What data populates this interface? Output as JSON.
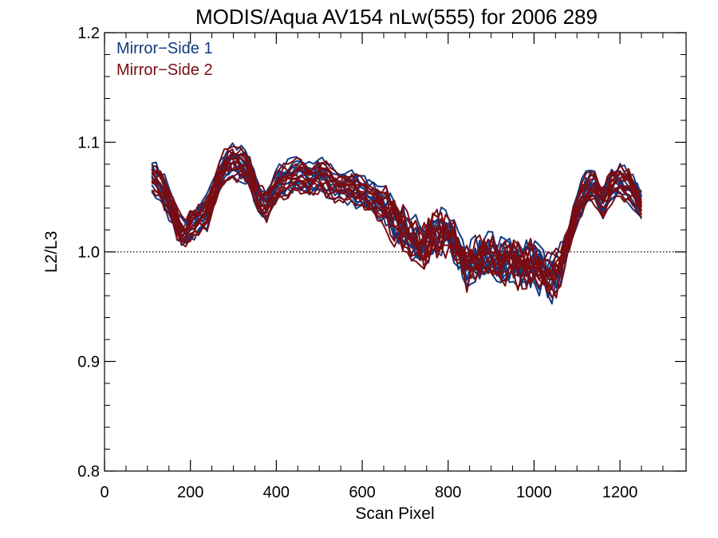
{
  "chart_data": {
    "type": "line",
    "title": "MODIS/Aqua AV154 nLw(555) for 2006 289",
    "xlabel": "Scan Pixel",
    "ylabel": "L2/L3",
    "xlim": [
      0,
      1354
    ],
    "ylim": [
      0.8,
      1.2
    ],
    "x_ticks": [
      "0",
      "200",
      "400",
      "600",
      "800",
      "1000",
      "1200"
    ],
    "y_ticks": [
      "0.8",
      "0.9",
      "1.0",
      "1.1",
      "1.2"
    ],
    "reference_line": 1.0,
    "grid": false,
    "legend_position": "top-left",
    "legend": [
      "Mirror−Side 1",
      "Mirror−Side 2"
    ],
    "colors": {
      "ms1": "#123a80",
      "ms2": "#7a0c12",
      "axis": "#000000"
    },
    "x": [
      110,
      130,
      150,
      170,
      185,
      200,
      220,
      240,
      260,
      280,
      300,
      320,
      340,
      360,
      380,
      400,
      420,
      440,
      460,
      480,
      500,
      520,
      540,
      560,
      580,
      600,
      620,
      640,
      660,
      680,
      700,
      720,
      740,
      760,
      780,
      800,
      820,
      840,
      860,
      880,
      900,
      920,
      940,
      960,
      980,
      1000,
      1020,
      1040,
      1060,
      1080,
      1100,
      1120,
      1140,
      1160,
      1180,
      1200,
      1220,
      1240,
      1250
    ],
    "series_template": [
      1.068,
      1.06,
      1.045,
      1.025,
      1.012,
      1.025,
      1.03,
      1.035,
      1.06,
      1.078,
      1.082,
      1.08,
      1.072,
      1.045,
      1.042,
      1.06,
      1.065,
      1.068,
      1.07,
      1.065,
      1.07,
      1.065,
      1.06,
      1.06,
      1.058,
      1.052,
      1.05,
      1.045,
      1.035,
      1.025,
      1.018,
      1.01,
      1.005,
      1.015,
      1.015,
      1.018,
      1.005,
      0.985,
      0.99,
      0.995,
      0.995,
      0.99,
      0.99,
      0.99,
      0.985,
      0.99,
      0.98,
      0.975,
      0.985,
      1.01,
      1.04,
      1.055,
      1.06,
      1.045,
      1.06,
      1.065,
      1.06,
      1.05,
      1.04
    ],
    "series": [
      {
        "group": "ms1",
        "offset": 0.0
      },
      {
        "group": "ms1",
        "offset": 0.006
      },
      {
        "group": "ms1",
        "offset": -0.005
      },
      {
        "group": "ms1",
        "offset": 0.011
      },
      {
        "group": "ms1",
        "offset": -0.009
      },
      {
        "group": "ms1",
        "offset": 0.003
      },
      {
        "group": "ms1",
        "offset": -0.002
      },
      {
        "group": "ms1",
        "offset": 0.008
      },
      {
        "group": "ms1",
        "offset": -0.012
      },
      {
        "group": "ms1",
        "offset": 0.014
      },
      {
        "group": "ms1",
        "offset": -0.007
      },
      {
        "group": "ms1",
        "offset": 0.001
      },
      {
        "group": "ms2",
        "offset": 0.002
      },
      {
        "group": "ms2",
        "offset": -0.004
      },
      {
        "group": "ms2",
        "offset": 0.009
      },
      {
        "group": "ms2",
        "offset": -0.01
      },
      {
        "group": "ms2",
        "offset": 0.005
      },
      {
        "group": "ms2",
        "offset": -0.001
      },
      {
        "group": "ms2",
        "offset": 0.012
      },
      {
        "group": "ms2",
        "offset": -0.006
      },
      {
        "group": "ms2",
        "offset": 0.007
      },
      {
        "group": "ms2",
        "offset": -0.013
      },
      {
        "group": "ms2",
        "offset": 0.004
      },
      {
        "group": "ms2",
        "offset": -0.003
      }
    ]
  }
}
